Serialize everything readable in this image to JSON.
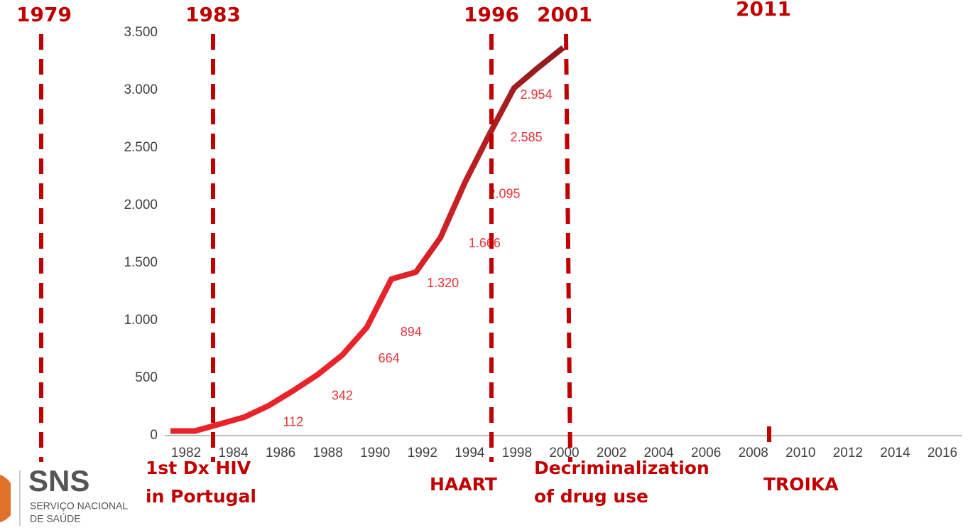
{
  "chart_data": {
    "type": "line",
    "categories": [
      "1982",
      "1984",
      "1986",
      "1988",
      "1990",
      "1992",
      "1994",
      "1998",
      "2000",
      "2002",
      "2004",
      "2006",
      "2008",
      "2010",
      "2012",
      "2014",
      "2016"
    ],
    "ylim": [
      0,
      3500
    ],
    "yticks": [
      0,
      {
        "value": 500,
        "label": "500"
      },
      {
        "value": 1000,
        "label": "1.000"
      },
      {
        "value": 1500,
        "label": "1.500"
      },
      {
        "value": 2000,
        "label": "2.000"
      },
      {
        "value": 2500,
        "label": "2.500"
      },
      {
        "value": 3000,
        "label": "3.000"
      },
      {
        "value": 3500,
        "label": "3.500"
      }
    ],
    "xlim": [
      1982,
      1998
    ],
    "series": [
      {
        "color": "#e8232a",
        "x": [
          1982,
          1983,
          1984,
          1985,
          1986,
          1987,
          1988,
          1989,
          1990,
          1991,
          1992,
          1993,
          1994,
          1995,
          1996,
          1997,
          1998
        ],
        "values": [
          40,
          40,
          100,
          160,
          260,
          390,
          530,
          700,
          940,
          1360,
          1420,
          1720,
          2200,
          2620,
          3020,
          3200,
          3370
        ]
      }
    ],
    "data_labels": {
      "color": "#e8323a",
      "x": [
        1987,
        1989,
        1990.9,
        1991.8,
        1993.1,
        1994.8,
        1995.6,
        1996.5,
        1996.9
      ],
      "values": [
        112,
        342,
        664,
        894,
        1320,
        1666,
        2095,
        2585,
        2954
      ],
      "value_labels": [
        "112",
        "342",
        "664",
        "894",
        "1.320",
        "1.666",
        "2.095",
        "2.585",
        "2.954"
      ]
    },
    "events": [
      {
        "label": "1979",
        "caption": []
      },
      {
        "label": "1983",
        "caption": [
          "1st Dx HIV",
          "in Portugal"
        ]
      },
      {
        "label": "1996",
        "caption": [
          "HAART"
        ]
      },
      {
        "label": "2001",
        "caption": [
          "Decriminalization",
          "of drug use"
        ]
      },
      {
        "label": "2011",
        "caption": [
          "TROIKA"
        ]
      }
    ],
    "event_color": "#c00000"
  },
  "logo": {
    "title": "SNS",
    "lines": [
      "SERVIÇO NACIONAL",
      "DE SAÚDE"
    ]
  }
}
